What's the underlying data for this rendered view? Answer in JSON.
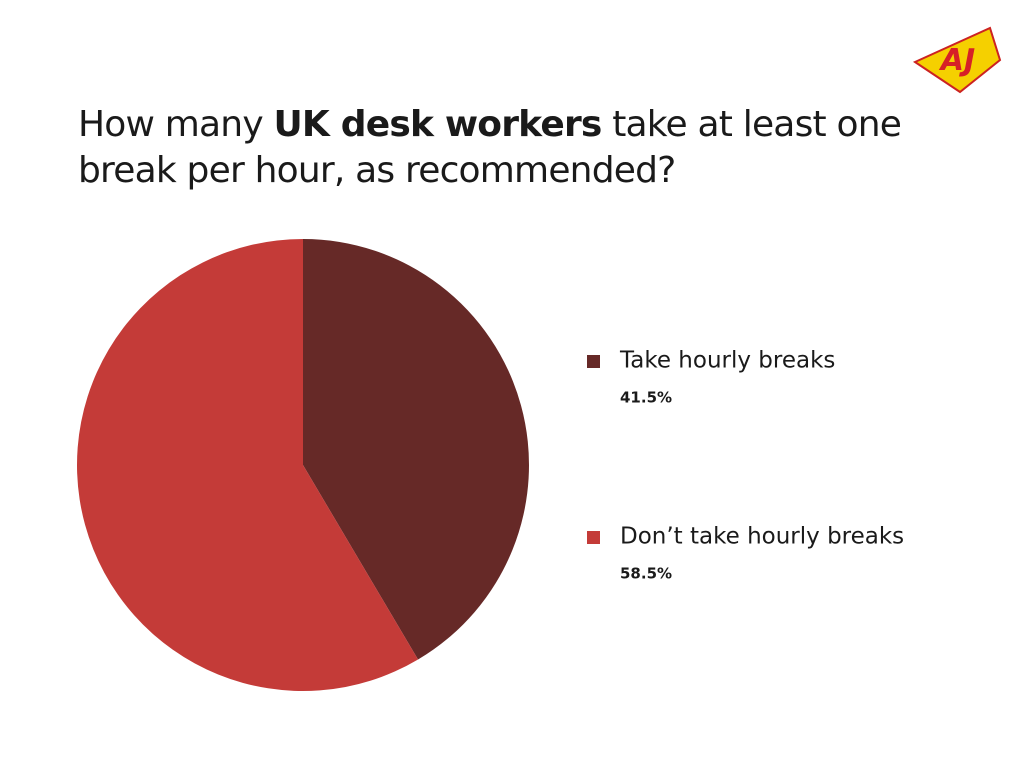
{
  "logo": "AJ",
  "chart_data": {
    "type": "pie",
    "title_parts": [
      "How many ",
      "UK desk workers",
      " take at least one break per hour, as recommended?"
    ],
    "categories": [
      "Take hourly breaks",
      "Don’t take hourly breaks"
    ],
    "values": [
      41.5,
      58.5
    ],
    "value_labels": [
      "41.5%",
      "58.5%"
    ],
    "colors": [
      "#662927",
      "#c43b38"
    ],
    "legend": "right"
  }
}
